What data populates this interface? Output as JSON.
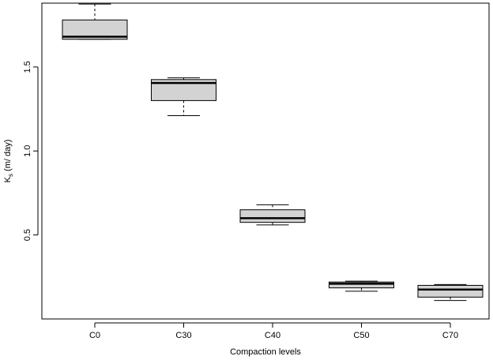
{
  "chart_data": {
    "type": "boxplot",
    "title": "",
    "xlabel": "Compaction levels",
    "ylabel": {
      "prefix": "K",
      "subscript": "s",
      "suffix": " (m/ day)"
    },
    "ylim": [
      0.0,
      1.88
    ],
    "yticks": [
      "0.5",
      "1.0",
      "1.5"
    ],
    "grid": false,
    "box_fill": "#d3d3d3",
    "categories": [
      "C0",
      "C30",
      "C40",
      "C50",
      "C70"
    ],
    "boxes": [
      {
        "label": "C0",
        "whisker_low": 1.665,
        "q1": 1.665,
        "median": 1.68,
        "q3": 1.78,
        "whisker_high": 1.875
      },
      {
        "label": "C30",
        "whisker_low": 1.21,
        "q1": 1.3,
        "median": 1.405,
        "q3": 1.425,
        "whisker_high": 1.435
      },
      {
        "label": "C40",
        "whisker_low": 0.56,
        "q1": 0.575,
        "median": 0.6,
        "q3": 0.65,
        "whisker_high": 0.68
      },
      {
        "label": "C50",
        "whisker_low": 0.165,
        "q1": 0.185,
        "median": 0.21,
        "q3": 0.22,
        "whisker_high": 0.225
      },
      {
        "label": "C70",
        "whisker_low": 0.11,
        "q1": 0.13,
        "median": 0.175,
        "q3": 0.2,
        "whisker_high": 0.205
      }
    ]
  }
}
